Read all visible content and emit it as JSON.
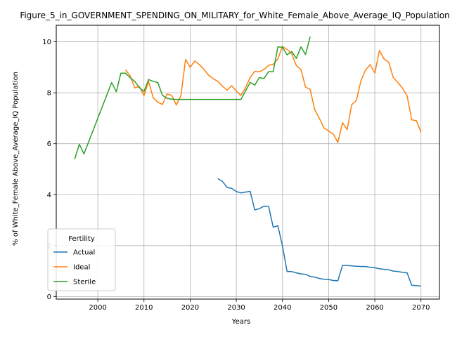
{
  "chart_data": {
    "type": "line",
    "title": "Figure_5_in_GOVERNMENT_SPENDING_ON_MILITARY_for_White_Female_Above_Average_IQ_Population",
    "xlabel": "Years",
    "ylabel": "% of White_Female Above_Average_IQ Population",
    "xlim": [
      1991,
      2074
    ],
    "ylim": [
      -0.1,
      10.65
    ],
    "xticks": [
      2000,
      2010,
      2020,
      2030,
      2040,
      2050,
      2060,
      2070
    ],
    "yticks": [
      0,
      2,
      4,
      6,
      8,
      10
    ],
    "grid": true,
    "legend": {
      "title": "Fertility",
      "placement": "lower-left"
    },
    "series": [
      {
        "name": "Actual",
        "color": "#1f77b4",
        "x": [
          2026,
          2027,
          2028,
          2029,
          2030,
          2031,
          2032,
          2033,
          2034,
          2035,
          2036,
          2037,
          2038,
          2039,
          2040,
          2041,
          2042,
          2043,
          2044,
          2045,
          2046,
          2047,
          2048,
          2049,
          2050,
          2051,
          2052,
          2053,
          2054,
          2055,
          2056,
          2057,
          2058,
          2059,
          2060,
          2061,
          2062,
          2063,
          2064,
          2065,
          2066,
          2067,
          2068,
          2069,
          2070
        ],
        "y": [
          4.63,
          4.52,
          4.28,
          4.25,
          4.12,
          4.07,
          4.1,
          4.13,
          3.4,
          3.45,
          3.55,
          3.54,
          2.72,
          2.78,
          1.99,
          0.98,
          0.98,
          0.93,
          0.89,
          0.87,
          0.79,
          0.76,
          0.71,
          0.68,
          0.67,
          0.63,
          0.62,
          1.22,
          1.22,
          1.2,
          1.19,
          1.18,
          1.18,
          1.15,
          1.13,
          1.09,
          1.07,
          1.05,
          1.0,
          0.98,
          0.95,
          0.93,
          0.44,
          0.43,
          0.41
        ]
      },
      {
        "name": "Ideal",
        "color": "#ff7f0e",
        "x": [
          2006,
          2007,
          2008,
          2009,
          2010,
          2011,
          2012,
          2013,
          2014,
          2015,
          2016,
          2017,
          2018,
          2019,
          2020,
          2021,
          2022,
          2023,
          2024,
          2025,
          2026,
          2027,
          2028,
          2029,
          2030,
          2031,
          2032,
          2033,
          2034,
          2035,
          2036,
          2037,
          2038,
          2039,
          2040,
          2041,
          2042,
          2043,
          2044,
          2045,
          2046,
          2047,
          2048,
          2049,
          2050,
          2051,
          2052,
          2053,
          2054,
          2055,
          2056,
          2057,
          2058,
          2059,
          2060,
          2061,
          2062,
          2063,
          2064,
          2065,
          2066,
          2067,
          2068,
          2069,
          2070
        ],
        "y": [
          8.9,
          8.67,
          8.19,
          8.25,
          7.89,
          8.45,
          7.8,
          7.63,
          7.54,
          7.95,
          7.9,
          7.52,
          7.88,
          9.31,
          9.0,
          9.25,
          9.1,
          8.92,
          8.69,
          8.55,
          8.45,
          8.26,
          8.1,
          8.28,
          8.06,
          7.9,
          8.2,
          8.6,
          8.84,
          8.82,
          8.92,
          9.08,
          9.12,
          9.33,
          9.82,
          9.7,
          9.53,
          9.07,
          8.91,
          8.22,
          8.13,
          7.33,
          6.99,
          6.62,
          6.5,
          6.38,
          6.05,
          6.83,
          6.55,
          7.53,
          7.7,
          8.48,
          8.9,
          9.1,
          8.77,
          9.66,
          9.33,
          9.2,
          8.6,
          8.4,
          8.18,
          7.88,
          6.94,
          6.9,
          6.46
        ]
      },
      {
        "name": "Sterile",
        "color": "#2ca02c",
        "x": [
          1995,
          1996,
          1997,
          2003,
          2004,
          2005,
          2006,
          2007,
          2008,
          2009,
          2010,
          2011,
          2012,
          2013,
          2014,
          2015,
          2016,
          2017,
          2018,
          2019,
          2020,
          2021,
          2022,
          2023,
          2024,
          2025,
          2026,
          2027,
          2028,
          2029,
          2030,
          2031,
          2032,
          2033,
          2034,
          2035,
          2036,
          2037,
          2038,
          2039,
          2040,
          2041,
          2042,
          2043,
          2044,
          2045,
          2046
        ],
        "y": [
          5.4,
          5.98,
          5.6,
          8.4,
          8.04,
          8.77,
          8.77,
          8.59,
          8.45,
          8.2,
          8.05,
          8.52,
          8.45,
          8.4,
          7.9,
          7.78,
          7.75,
          7.74,
          7.74,
          7.74,
          7.74,
          7.74,
          7.74,
          7.74,
          7.74,
          7.74,
          7.74,
          7.74,
          7.74,
          7.74,
          7.74,
          7.74,
          8.07,
          8.41,
          8.3,
          8.6,
          8.56,
          8.83,
          8.83,
          9.8,
          9.79,
          9.49,
          9.62,
          9.35,
          9.8,
          9.5,
          10.2
        ]
      }
    ]
  }
}
